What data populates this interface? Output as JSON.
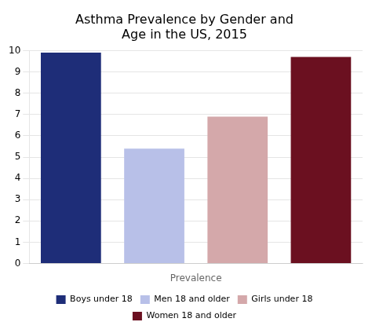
{
  "chart_data": {
    "type": "bar",
    "title": "Asthma Prevalence by Gender and\nAge in the US, 2015",
    "categories": [
      "Boys under 18",
      "Men 18 and older",
      "Girls under 18",
      "Women 18 and older"
    ],
    "values": [
      9.9,
      5.4,
      6.9,
      9.7
    ],
    "colors": [
      "#1e2d78",
      "#b8c0e8",
      "#d4a8aa",
      "#6b1020"
    ],
    "xlabel": "Prevalence",
    "ylim": [
      0,
      10
    ],
    "yticks": [
      0,
      1,
      2,
      3,
      4,
      5,
      6,
      7,
      8,
      9,
      10
    ],
    "grid": true,
    "legend": "bottom",
    "tick_labels": "y"
  }
}
